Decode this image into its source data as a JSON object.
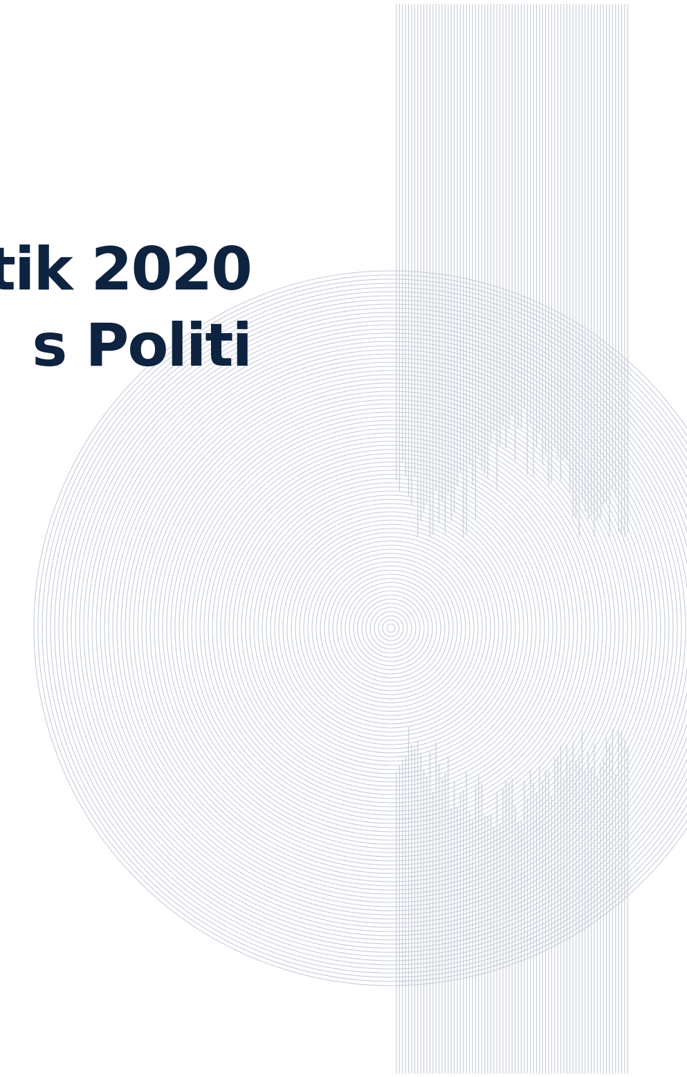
{
  "cover": {
    "title_lines": [
      "tik 2020",
      "s Politi"
    ]
  },
  "colors": {
    "background": "#ffffff",
    "title_text": "#0d2340",
    "line_art": "#c4cad6"
  }
}
